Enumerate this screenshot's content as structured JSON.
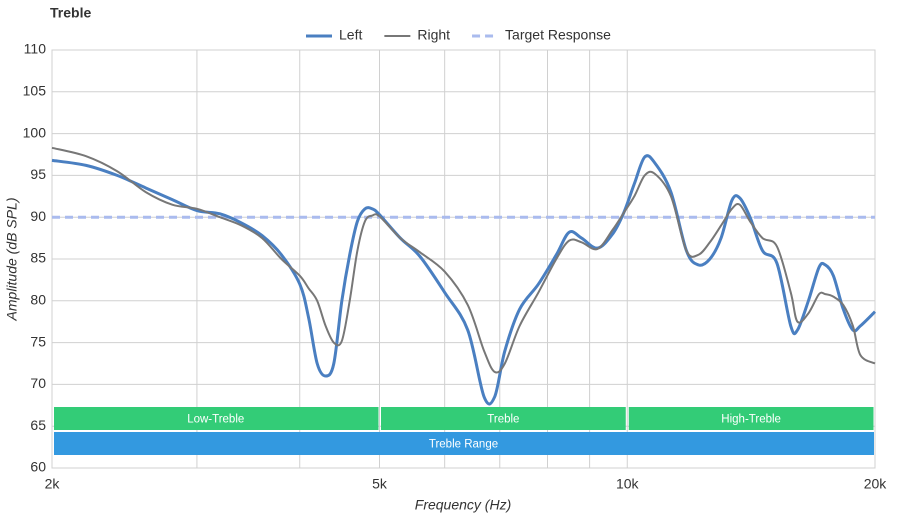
{
  "chart_data": {
    "type": "line",
    "title": "Treble",
    "x_label": "Frequency (Hz)",
    "y_label": "Amplitude (dB SPL)",
    "x_scale": "log",
    "grid": true,
    "legend": "top",
    "xlim": [
      2000,
      20000
    ],
    "xticks": [
      {
        "value": 2000,
        "label": "2k"
      },
      {
        "value": 5000,
        "label": "5k"
      },
      {
        "value": 10000,
        "label": "10k"
      },
      {
        "value": 20000,
        "label": "20k"
      }
    ],
    "x_minor_ticks": [
      3000,
      4000,
      6000,
      7000,
      8000,
      9000
    ],
    "ylim": [
      60,
      110
    ],
    "yticks": [
      60,
      65,
      70,
      75,
      80,
      85,
      90,
      95,
      100,
      105,
      110
    ],
    "x": [
      2000,
      2200,
      2400,
      2600,
      2800,
      3000,
      3200,
      3400,
      3600,
      3800,
      4000,
      4100,
      4200,
      4300,
      4400,
      4500,
      4600,
      4700,
      4800,
      4900,
      5000,
      5300,
      5600,
      6000,
      6400,
      6700,
      6900,
      7100,
      7400,
      7800,
      8200,
      8500,
      8800,
      9200,
      9600,
      9900,
      10200,
      10500,
      10800,
      11300,
      11800,
      12200,
      12600,
      13000,
      13400,
      13700,
      14100,
      14600,
      15200,
      15800,
      16100,
      16600,
      17100,
      17400,
      17800,
      18300,
      18800,
      19200,
      20000
    ],
    "series": [
      {
        "name": "Left",
        "color": "#4a7fc1",
        "values": [
          96.8,
          96.2,
          95,
          93.5,
          92.1,
          90.8,
          90.4,
          89.3,
          87.8,
          85.5,
          82,
          78,
          72.5,
          71,
          72.5,
          80,
          85.5,
          89.5,
          91,
          91,
          90.3,
          87.5,
          85.3,
          81,
          76.5,
          68.5,
          68.5,
          74,
          79,
          82,
          85.5,
          88.2,
          87.5,
          86.3,
          88,
          90.5,
          94,
          97.2,
          96.5,
          93,
          86,
          84.3,
          85,
          87.5,
          92,
          92.3,
          90,
          86,
          84.5,
          77,
          76.5,
          80,
          84,
          84.3,
          83,
          79,
          76.5,
          77,
          78.7
        ]
      },
      {
        "name": "Right",
        "color": "#777777",
        "values": [
          98.3,
          97.3,
          95.5,
          93,
          91.5,
          91,
          90,
          89,
          87.5,
          85,
          83,
          81.5,
          80,
          77,
          75,
          75.2,
          80,
          86,
          89.5,
          90.2,
          90.1,
          87.5,
          85.8,
          83.5,
          79.5,
          74,
          71.5,
          72.5,
          77,
          81,
          85,
          87.2,
          87,
          86.2,
          88.5,
          90.5,
          92.5,
          95,
          95.2,
          92.5,
          86,
          85.5,
          87,
          89,
          91,
          91.5,
          89.5,
          87.5,
          86.5,
          81,
          77.5,
          78.5,
          80.8,
          80.8,
          80.5,
          79.5,
          77,
          73.5,
          72.5
        ]
      }
    ],
    "target": {
      "name": "Target Response",
      "color": "#aabbee",
      "value": 90
    },
    "bands": [
      {
        "label": "Low-Treble",
        "start": 2000,
        "end": 5000,
        "color": "#33cc77",
        "row": 0
      },
      {
        "label": "Treble",
        "start": 5000,
        "end": 10000,
        "color": "#33cc77",
        "row": 0
      },
      {
        "label": "High-Treble",
        "start": 10000,
        "end": 20000,
        "color": "#33cc77",
        "row": 0
      },
      {
        "label": "Treble Range",
        "start": 2000,
        "end": 20000,
        "color": "#3399e0",
        "row": 1
      }
    ]
  }
}
